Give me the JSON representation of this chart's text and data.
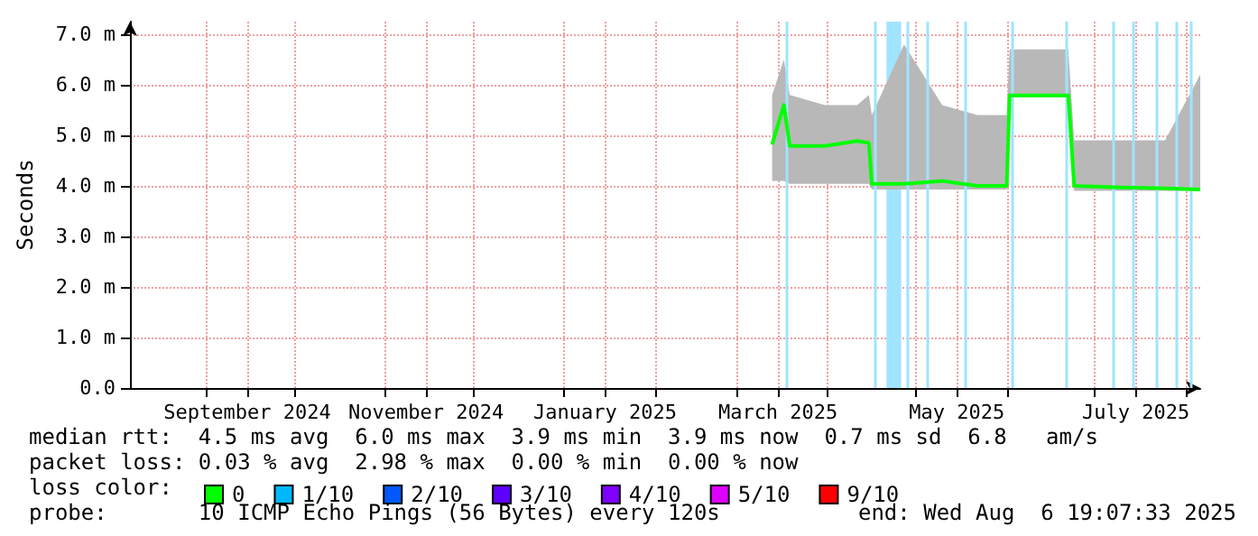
{
  "chart_data": {
    "type": "line",
    "ylabel": "Seconds",
    "legend_title": "loss color:",
    "legend": "bottom",
    "grid": true,
    "x": [
      "2025-03-13",
      "2025-03-17",
      "2025-03-19",
      "2025-03-31",
      "2025-04-11",
      "2025-04-15",
      "2025-04-16",
      "2025-04-27",
      "2025-05-10",
      "2025-05-22",
      "2025-06-01",
      "2025-06-02",
      "2025-06-12",
      "2025-06-22",
      "2025-06-24",
      "2025-07-10",
      "2025-07-25",
      "2025-08-06"
    ],
    "series": [
      {
        "name": "0",
        "color": "#00ff00",
        "values": [
          4.82,
          5.6,
          4.79,
          4.79,
          4.89,
          4.85,
          4.04,
          4.04,
          4.1,
          4.0,
          4.0,
          5.79,
          5.79,
          5.79,
          4.0,
          3.97,
          3.95,
          3.93
        ],
        "lower": [
          4.1,
          4.1,
          4.04,
          4.04,
          4.04,
          4.04,
          3.93,
          3.93,
          3.93,
          3.93,
          3.93,
          5.75,
          5.75,
          5.75,
          3.9,
          3.9,
          3.9,
          3.9
        ],
        "upper": [
          5.8,
          6.5,
          5.8,
          5.6,
          5.6,
          5.8,
          5.4,
          6.8,
          5.6,
          5.4,
          5.4,
          6.7,
          6.7,
          6.7,
          4.9,
          4.9,
          4.9,
          6.2
        ]
      },
      {
        "name": "1/10",
        "color": "#00b8ff",
        "values": [
          null,
          null,
          null,
          null,
          null,
          null,
          null,
          null,
          null,
          null,
          null,
          null,
          null,
          null,
          null,
          null,
          null,
          null
        ]
      },
      {
        "name": "2/10",
        "color": "#0059ff",
        "values": [
          null,
          null,
          null,
          null,
          null,
          null,
          null,
          null,
          null,
          null,
          null,
          null,
          null,
          null,
          null,
          null,
          null,
          null
        ]
      },
      {
        "name": "3/10",
        "color": "#5e00ff",
        "values": [
          null,
          null,
          null,
          null,
          null,
          null,
          null,
          null,
          null,
          null,
          null,
          null,
          null,
          null,
          null,
          null,
          null,
          null
        ]
      },
      {
        "name": "4/10",
        "color": "#7e00ff",
        "values": [
          null,
          null,
          null,
          null,
          null,
          null,
          null,
          null,
          null,
          null,
          null,
          null,
          null,
          null,
          null,
          null,
          null,
          null
        ]
      },
      {
        "name": "5/10",
        "color": "#dd00ff",
        "values": [
          null,
          null,
          null,
          null,
          null,
          null,
          null,
          null,
          null,
          null,
          null,
          null,
          null,
          null,
          null,
          null,
          null,
          null
        ]
      },
      {
        "name": "9/10",
        "color": "#ff0000",
        "values": [
          null,
          null,
          null,
          null,
          null,
          null,
          null,
          null,
          null,
          null,
          null,
          null,
          null,
          null,
          null,
          null,
          null,
          null
        ]
      }
    ],
    "xlim": [
      "2024-08-06",
      "2025-08-06"
    ],
    "xticks": [
      {
        "value": "2024-09-01",
        "label": null
      },
      {
        "value": "2024-09-15",
        "label": "September 2024"
      },
      {
        "value": "2024-10-01",
        "label": null
      },
      {
        "value": "2024-11-01",
        "label": null
      },
      {
        "value": "2024-11-15",
        "label": "November 2024"
      },
      {
        "value": "2024-12-01",
        "label": null
      },
      {
        "value": "2025-01-01",
        "label": null
      },
      {
        "value": "2025-01-15",
        "label": "January 2025"
      },
      {
        "value": "2025-02-01",
        "label": null
      },
      {
        "value": "2025-03-01",
        "label": null
      },
      {
        "value": "2025-03-15",
        "label": "March 2025"
      },
      {
        "value": "2025-04-01",
        "label": null
      },
      {
        "value": "2025-05-01",
        "label": null
      },
      {
        "value": "2025-05-15",
        "label": "May 2025"
      },
      {
        "value": "2025-06-01",
        "label": null
      },
      {
        "value": "2025-07-01",
        "label": null
      },
      {
        "value": "2025-07-15",
        "label": "July 2025"
      },
      {
        "value": "2025-08-01",
        "label": null
      }
    ],
    "ylim": [
      0,
      7.25
    ],
    "yticks": [
      {
        "value": 0,
        "label": "0.0"
      },
      {
        "value": 1,
        "label": "1.0 m"
      },
      {
        "value": 2,
        "label": "2.0 m"
      },
      {
        "value": 3,
        "label": "3.0 m"
      },
      {
        "value": 4,
        "label": "4.0 m"
      },
      {
        "value": 5,
        "label": "5.0 m"
      },
      {
        "value": 6,
        "label": "6.0 m"
      },
      {
        "value": 7,
        "label": "7.0 m"
      }
    ],
    "bands": [
      {
        "axis": "x",
        "from": "2025-04-21",
        "to": "2025-04-26",
        "color": "#a0e4ff"
      }
    ],
    "ref_lines": [
      {
        "axis": "x",
        "value": "2025-03-18",
        "color": "#a0e4ff"
      },
      {
        "axis": "x",
        "value": "2025-04-17",
        "color": "#a0e4ff"
      },
      {
        "axis": "x",
        "value": "2025-04-28",
        "color": "#a0e4ff"
      },
      {
        "axis": "x",
        "value": "2025-05-05",
        "color": "#a0e4ff"
      },
      {
        "axis": "x",
        "value": "2025-05-18",
        "color": "#a0e4ff"
      },
      {
        "axis": "x",
        "value": "2025-06-03",
        "color": "#a0e4ff"
      },
      {
        "axis": "x",
        "value": "2025-06-21",
        "color": "#a0e4ff"
      },
      {
        "axis": "x",
        "value": "2025-07-07",
        "color": "#a0e4ff"
      },
      {
        "axis": "x",
        "value": "2025-07-14",
        "color": "#a0e4ff"
      },
      {
        "axis": "x",
        "value": "2025-07-22",
        "color": "#a0e4ff"
      },
      {
        "axis": "x",
        "value": "2025-07-29",
        "color": "#a0e4ff"
      },
      {
        "axis": "x",
        "value": "2025-08-03",
        "color": "#a0e4ff"
      }
    ],
    "annotations": [
      "median rtt:  4.5 ms avg  6.0 ms max  3.9 ms min  3.9 ms now  0.7 ms sd  6.8   am/s",
      "packet loss: 0.03 % avg  2.98 % max  0.00 % min  0.00 % now",
      "probe:       10 ICMP Echo Pings (56 Bytes) every 120s",
      "end: Wed Aug  6 19:07:33 2025"
    ]
  }
}
